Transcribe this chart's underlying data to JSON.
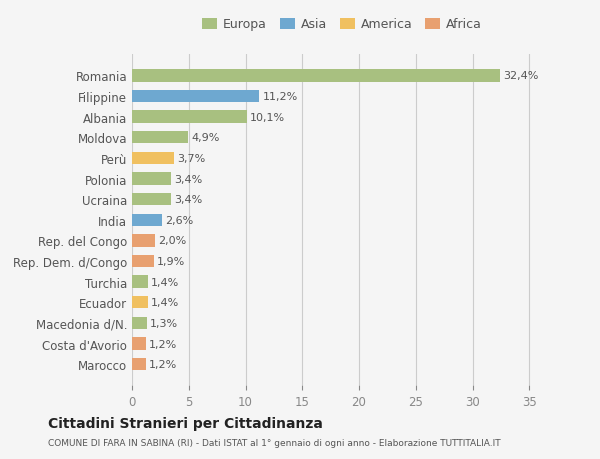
{
  "countries": [
    "Romania",
    "Filippine",
    "Albania",
    "Moldova",
    "Perù",
    "Polonia",
    "Ucraina",
    "India",
    "Rep. del Congo",
    "Rep. Dem. d/Congo",
    "Turchia",
    "Ecuador",
    "Macedonia d/N.",
    "Costa d'Avorio",
    "Marocco"
  ],
  "values": [
    32.4,
    11.2,
    10.1,
    4.9,
    3.7,
    3.4,
    3.4,
    2.6,
    2.0,
    1.9,
    1.4,
    1.4,
    1.3,
    1.2,
    1.2
  ],
  "labels": [
    "32,4%",
    "11,2%",
    "10,1%",
    "4,9%",
    "3,7%",
    "3,4%",
    "3,4%",
    "2,6%",
    "2,0%",
    "1,9%",
    "1,4%",
    "1,4%",
    "1,3%",
    "1,2%",
    "1,2%"
  ],
  "continents": [
    "Europa",
    "Asia",
    "Europa",
    "Europa",
    "America",
    "Europa",
    "Europa",
    "Asia",
    "Africa",
    "Africa",
    "Europa",
    "America",
    "Europa",
    "Africa",
    "Africa"
  ],
  "colors": {
    "Europa": "#a8c080",
    "Asia": "#6ea8d0",
    "America": "#f0c060",
    "Africa": "#e8a070"
  },
  "legend_order": [
    "Europa",
    "Asia",
    "America",
    "Africa"
  ],
  "bg_color": "#f5f5f5",
  "title": "Cittadini Stranieri per Cittadinanza",
  "subtitle": "COMUNE DI FARA IN SABINA (RI) - Dati ISTAT al 1° gennaio di ogni anno - Elaborazione TUTTITALIA.IT",
  "xlim": [
    0,
    37
  ],
  "xticks": [
    0,
    5,
    10,
    15,
    20,
    25,
    30,
    35
  ]
}
